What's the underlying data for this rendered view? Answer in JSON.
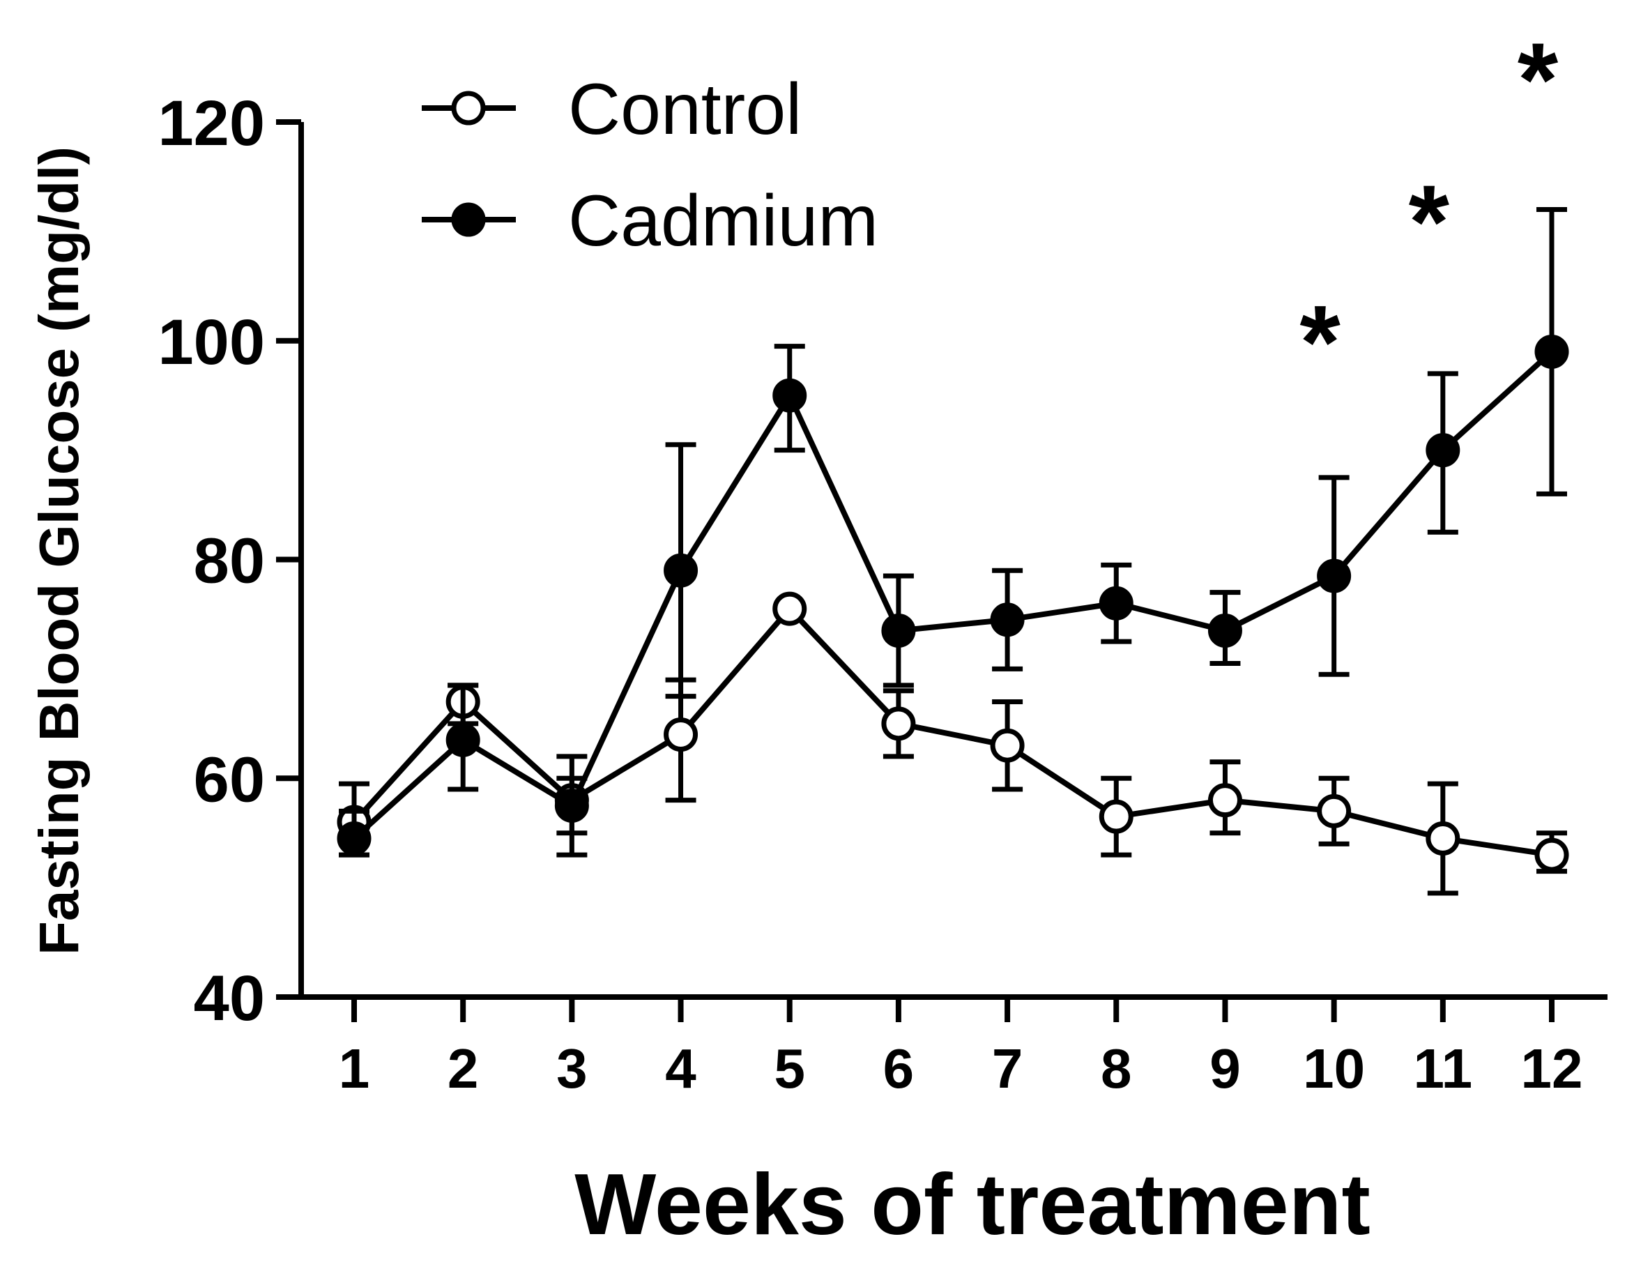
{
  "chart_data": {
    "type": "line",
    "title": "",
    "xlabel": "Weeks of treatment",
    "ylabel": "Fasting Blood Glucose (mg/dl)",
    "x": [
      1,
      2,
      3,
      4,
      5,
      6,
      7,
      8,
      9,
      10,
      11,
      12
    ],
    "x_tick_labels": [
      "1",
      "2",
      "3",
      "4",
      "5",
      "6",
      "7",
      "8",
      "9",
      "10",
      "11",
      "12"
    ],
    "ylim": [
      40,
      120
    ],
    "y_ticks": [
      40,
      60,
      80,
      100,
      120
    ],
    "y_tick_labels": [
      "40",
      "60",
      "80",
      "100",
      "120"
    ],
    "grid": false,
    "legend_position": "top-left",
    "series": [
      {
        "name": "Control",
        "marker": "open-circle",
        "color": "#000000",
        "values": [
          56,
          67,
          58,
          64,
          75.5,
          65,
          63,
          56.5,
          58,
          57,
          54.5,
          53
        ],
        "err_high": [
          59.5,
          68.5,
          62,
          69,
          75.5,
          68,
          67,
          60,
          61.5,
          60,
          59.5,
          55
        ],
        "err_low": [
          53,
          65,
          55,
          58,
          75.5,
          62,
          59,
          53,
          55,
          54,
          49.5,
          51.5
        ]
      },
      {
        "name": "Cadmium",
        "marker": "filled-circle",
        "color": "#000000",
        "values": [
          54.5,
          63.5,
          57.5,
          79,
          95,
          73.5,
          74.5,
          76,
          73.5,
          78.5,
          90,
          99
        ],
        "err_high": [
          57,
          68.5,
          60,
          90.5,
          99.5,
          78.5,
          79,
          79.5,
          77,
          87.5,
          97,
          112
        ],
        "err_low": [
          53,
          59,
          53,
          67.5,
          90,
          68.5,
          70,
          72.5,
          70.5,
          69.5,
          82.5,
          86
        ]
      }
    ],
    "annotations": [
      {
        "text": "*",
        "x": 10,
        "y": 102
      },
      {
        "text": "*",
        "x": 11,
        "y": 113
      },
      {
        "text": "*",
        "x": 12,
        "y": 126
      }
    ]
  }
}
